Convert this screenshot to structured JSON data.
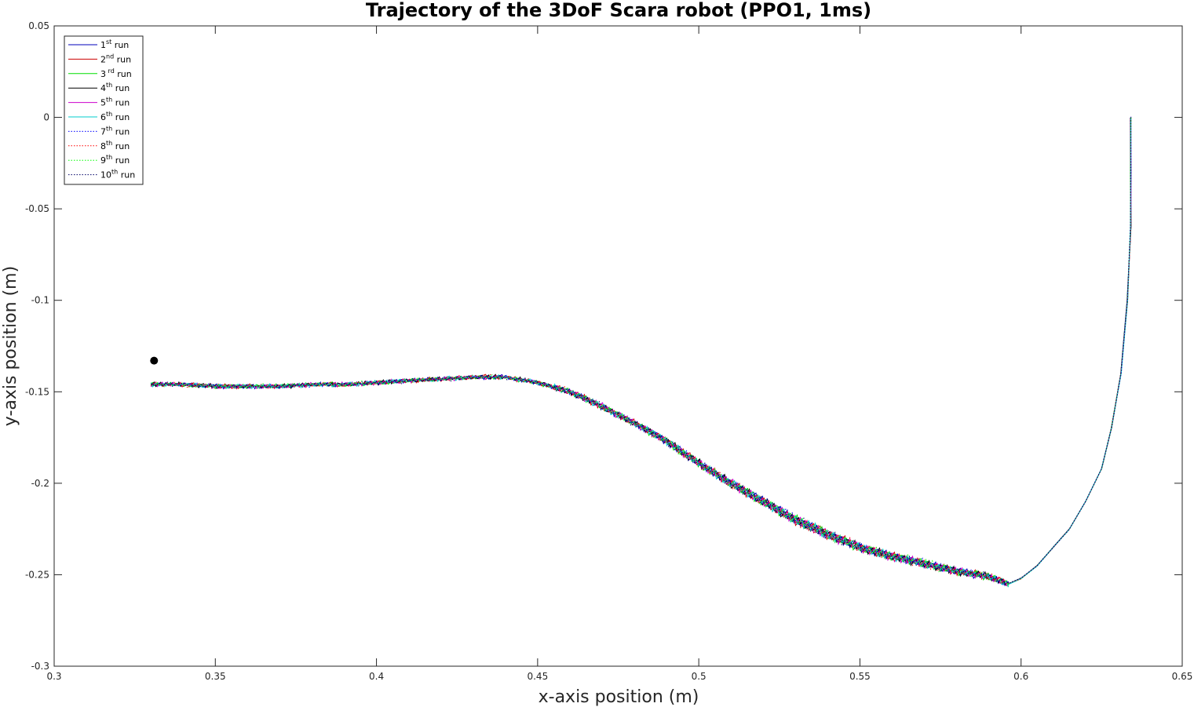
{
  "chart_data": {
    "type": "line",
    "title": "Trajectory of the 3DoF Scara robot (PPO1, 1ms)",
    "xlabel": "x-axis position (m)",
    "ylabel": "y-axis position (m)",
    "xlim": [
      0.3,
      0.65
    ],
    "ylim": [
      -0.3,
      0.05
    ],
    "xticks": [
      "0.3",
      "0.35",
      "0.4",
      "0.45",
      "0.5",
      "0.55",
      "0.6",
      "0.65"
    ],
    "yticks": [
      "0.05",
      "0",
      "-0.05",
      "-0.1",
      "-0.15",
      "-0.2",
      "-0.25",
      "-0.3"
    ],
    "grid": false,
    "legend_position": "top-left",
    "target_point": {
      "x": 0.331,
      "y": -0.133,
      "color": "#000000"
    },
    "path": [
      [
        0.33,
        -0.146
      ],
      [
        0.34,
        -0.146
      ],
      [
        0.35,
        -0.147
      ],
      [
        0.36,
        -0.147
      ],
      [
        0.37,
        -0.147
      ],
      [
        0.38,
        -0.146
      ],
      [
        0.39,
        -0.146
      ],
      [
        0.4,
        -0.145
      ],
      [
        0.41,
        -0.144
      ],
      [
        0.42,
        -0.143
      ],
      [
        0.43,
        -0.142
      ],
      [
        0.44,
        -0.142
      ],
      [
        0.45,
        -0.145
      ],
      [
        0.46,
        -0.15
      ],
      [
        0.47,
        -0.158
      ],
      [
        0.48,
        -0.167
      ],
      [
        0.49,
        -0.177
      ],
      [
        0.5,
        -0.189
      ],
      [
        0.51,
        -0.2
      ],
      [
        0.52,
        -0.21
      ],
      [
        0.53,
        -0.22
      ],
      [
        0.54,
        -0.228
      ],
      [
        0.55,
        -0.235
      ],
      [
        0.56,
        -0.24
      ],
      [
        0.57,
        -0.244
      ],
      [
        0.58,
        -0.248
      ],
      [
        0.59,
        -0.251
      ],
      [
        0.596,
        -0.255
      ],
      [
        0.6,
        -0.252
      ],
      [
        0.605,
        -0.245
      ],
      [
        0.61,
        -0.235
      ],
      [
        0.615,
        -0.225
      ],
      [
        0.62,
        -0.21
      ],
      [
        0.625,
        -0.192
      ],
      [
        0.628,
        -0.17
      ],
      [
        0.631,
        -0.14
      ],
      [
        0.633,
        -0.1
      ],
      [
        0.634,
        -0.06
      ],
      [
        0.634,
        -0.03
      ],
      [
        0.634,
        0.0
      ]
    ],
    "series": [
      {
        "name": "1st run",
        "base": "1",
        "sup": "st",
        "suffix": " run",
        "color": "#0000bb",
        "style": "solid",
        "seed": 1
      },
      {
        "name": "2nd run",
        "base": "2",
        "sup": "nd",
        "suffix": " run",
        "color": "#cc0000",
        "style": "solid",
        "seed": 2
      },
      {
        "name": "3 rd run",
        "base": "3",
        "sup": " rd",
        "suffix": " run",
        "color": "#00dd00",
        "style": "solid",
        "seed": 3
      },
      {
        "name": "4th run",
        "base": "4",
        "sup": "th",
        "suffix": " run",
        "color": "#000000",
        "style": "solid",
        "seed": 4
      },
      {
        "name": "5th run",
        "base": "5",
        "sup": "th",
        "suffix": " run",
        "color": "#cc00cc",
        "style": "solid",
        "seed": 5
      },
      {
        "name": "6th run",
        "base": "6",
        "sup": "th",
        "suffix": " run",
        "color": "#00cccc",
        "style": "solid",
        "seed": 6
      },
      {
        "name": "7th run",
        "base": "7",
        "sup": "th",
        "suffix": " run",
        "color": "#0000ff",
        "style": "dotted",
        "seed": 7
      },
      {
        "name": "8th run",
        "base": "8",
        "sup": "th",
        "suffix": " run",
        "color": "#ff0000",
        "style": "dotted",
        "seed": 8
      },
      {
        "name": "9th run",
        "base": "9",
        "sup": "th",
        "suffix": " run",
        "color": "#00ff00",
        "style": "dotted",
        "seed": 9
      },
      {
        "name": "10th run",
        "base": "10",
        "sup": "th",
        "suffix": " run",
        "color": "#000066",
        "style": "dotted",
        "seed": 10
      }
    ]
  }
}
